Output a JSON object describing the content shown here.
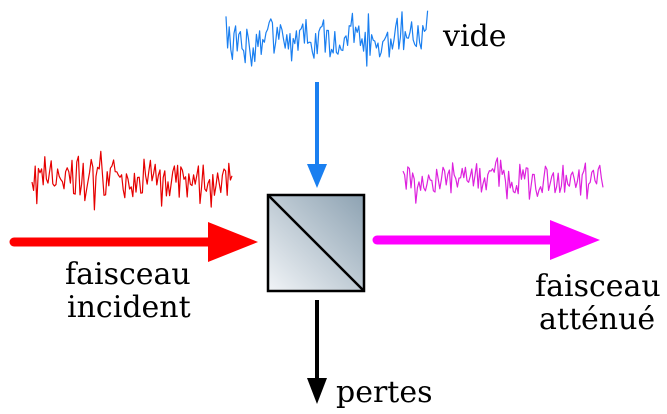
{
  "labels": {
    "vacuum": "vide",
    "incident_line1": "faisceau",
    "incident_line2": "incident",
    "attenuated_line1": "faisceau",
    "attenuated_line2": "atténué",
    "losses": "pertes"
  },
  "colors": {
    "vacuum": "#1a7ff0",
    "incident": "#ff0000",
    "incident_noise": "#e60000",
    "attenuated": "#ff00ff",
    "attenuated_noise": "#dd22dd",
    "losses": "#000000",
    "splitter_light": "#f1f4f7",
    "splitter_dark": "#8da2b2"
  }
}
